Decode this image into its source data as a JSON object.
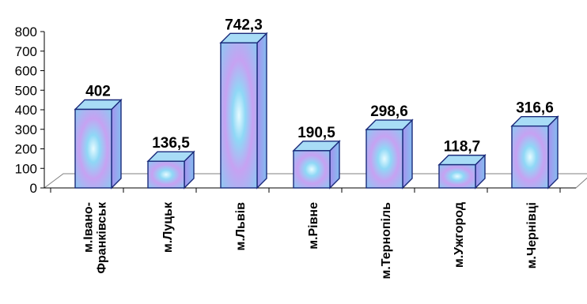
{
  "chart_data": {
    "type": "bar",
    "style": "3d-column",
    "categories": [
      "м.Івано-Франківськ",
      "м.Луцьк",
      "м.Львів",
      "м.Рівне",
      "м.Тернопіль",
      "м.Ужгород",
      "м.Чернівці"
    ],
    "category_lines": [
      [
        "м.Івано-",
        "Франківськ"
      ],
      [
        "м.Луцьк"
      ],
      [
        "м.Львів"
      ],
      [
        "м.Рівне"
      ],
      [
        "м.Тернопіль"
      ],
      [
        "м.Ужгород"
      ],
      [
        "м.Чернівці"
      ]
    ],
    "values": [
      402,
      136.5,
      742.3,
      190.5,
      298.6,
      118.7,
      316.6
    ],
    "data_labels": [
      "402",
      "136,5",
      "742,3",
      "190,5",
      "298,6",
      "118,7",
      "316,6"
    ],
    "y_ticks": [
      "0",
      "100",
      "200",
      "300",
      "400",
      "500",
      "600",
      "700",
      "800"
    ],
    "ylim": [
      0,
      800
    ],
    "grid": false,
    "legend": "none",
    "title": "",
    "xlabel": "",
    "ylabel": "",
    "colors": {
      "bar_edge": "#1a2a7a",
      "bar_outer": "#7fc8f0",
      "bar_mid": "#c09af0",
      "bar_center": "#d8f4ff",
      "bar_top": "#a8dcf6",
      "bar_side": "#9a8ee8",
      "axis": "#000000",
      "floor": "#808080"
    }
  }
}
